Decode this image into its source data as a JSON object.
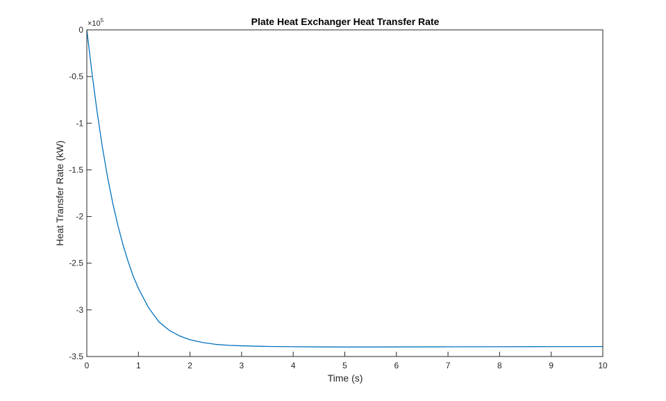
{
  "chart_data": {
    "type": "line",
    "title": "Plate Heat Exchanger Heat Transfer Rate",
    "xlabel": "Time (s)",
    "ylabel": "Heat Transfer Rate (kW)",
    "xlim": [
      0,
      10
    ],
    "ylim": [
      -350000,
      0
    ],
    "y_exponent_base": "×10",
    "y_exponent_power": "5",
    "x_ticks": [
      0,
      1,
      2,
      3,
      4,
      5,
      6,
      7,
      8,
      9,
      10
    ],
    "x_tick_labels": [
      "0",
      "1",
      "2",
      "3",
      "4",
      "5",
      "6",
      "7",
      "8",
      "9",
      "10"
    ],
    "y_ticks": [
      0,
      -50000,
      -100000,
      -150000,
      -200000,
      -250000,
      -300000,
      -350000
    ],
    "y_tick_labels": [
      "0",
      "-0.5",
      "-1",
      "-1.5",
      "-2",
      "-2.5",
      "-3",
      "-3.5"
    ],
    "grid": false,
    "series": [
      {
        "color": "#0072BD",
        "x": [
          0,
          0.1,
          0.2,
          0.3,
          0.4,
          0.5,
          0.6,
          0.7,
          0.8,
          0.9,
          1.0,
          1.2,
          1.4,
          1.6,
          1.8,
          2.0,
          2.25,
          2.5,
          2.75,
          3.0,
          3.5,
          4.0,
          4.5,
          5.0,
          5.5,
          6.0,
          7.0,
          8.0,
          9.0,
          10.0
        ],
        "y": [
          0,
          -46000,
          -88000,
          -125000,
          -157000,
          -185000,
          -209000,
          -230000,
          -248000,
          -264000,
          -277000,
          -298000,
          -313000,
          -322000,
          -328000,
          -332000,
          -335000,
          -337000,
          -338000,
          -338500,
          -339200,
          -339500,
          -339700,
          -339800,
          -339800,
          -339700,
          -339600,
          -339500,
          -339400,
          -339300
        ]
      }
    ]
  }
}
